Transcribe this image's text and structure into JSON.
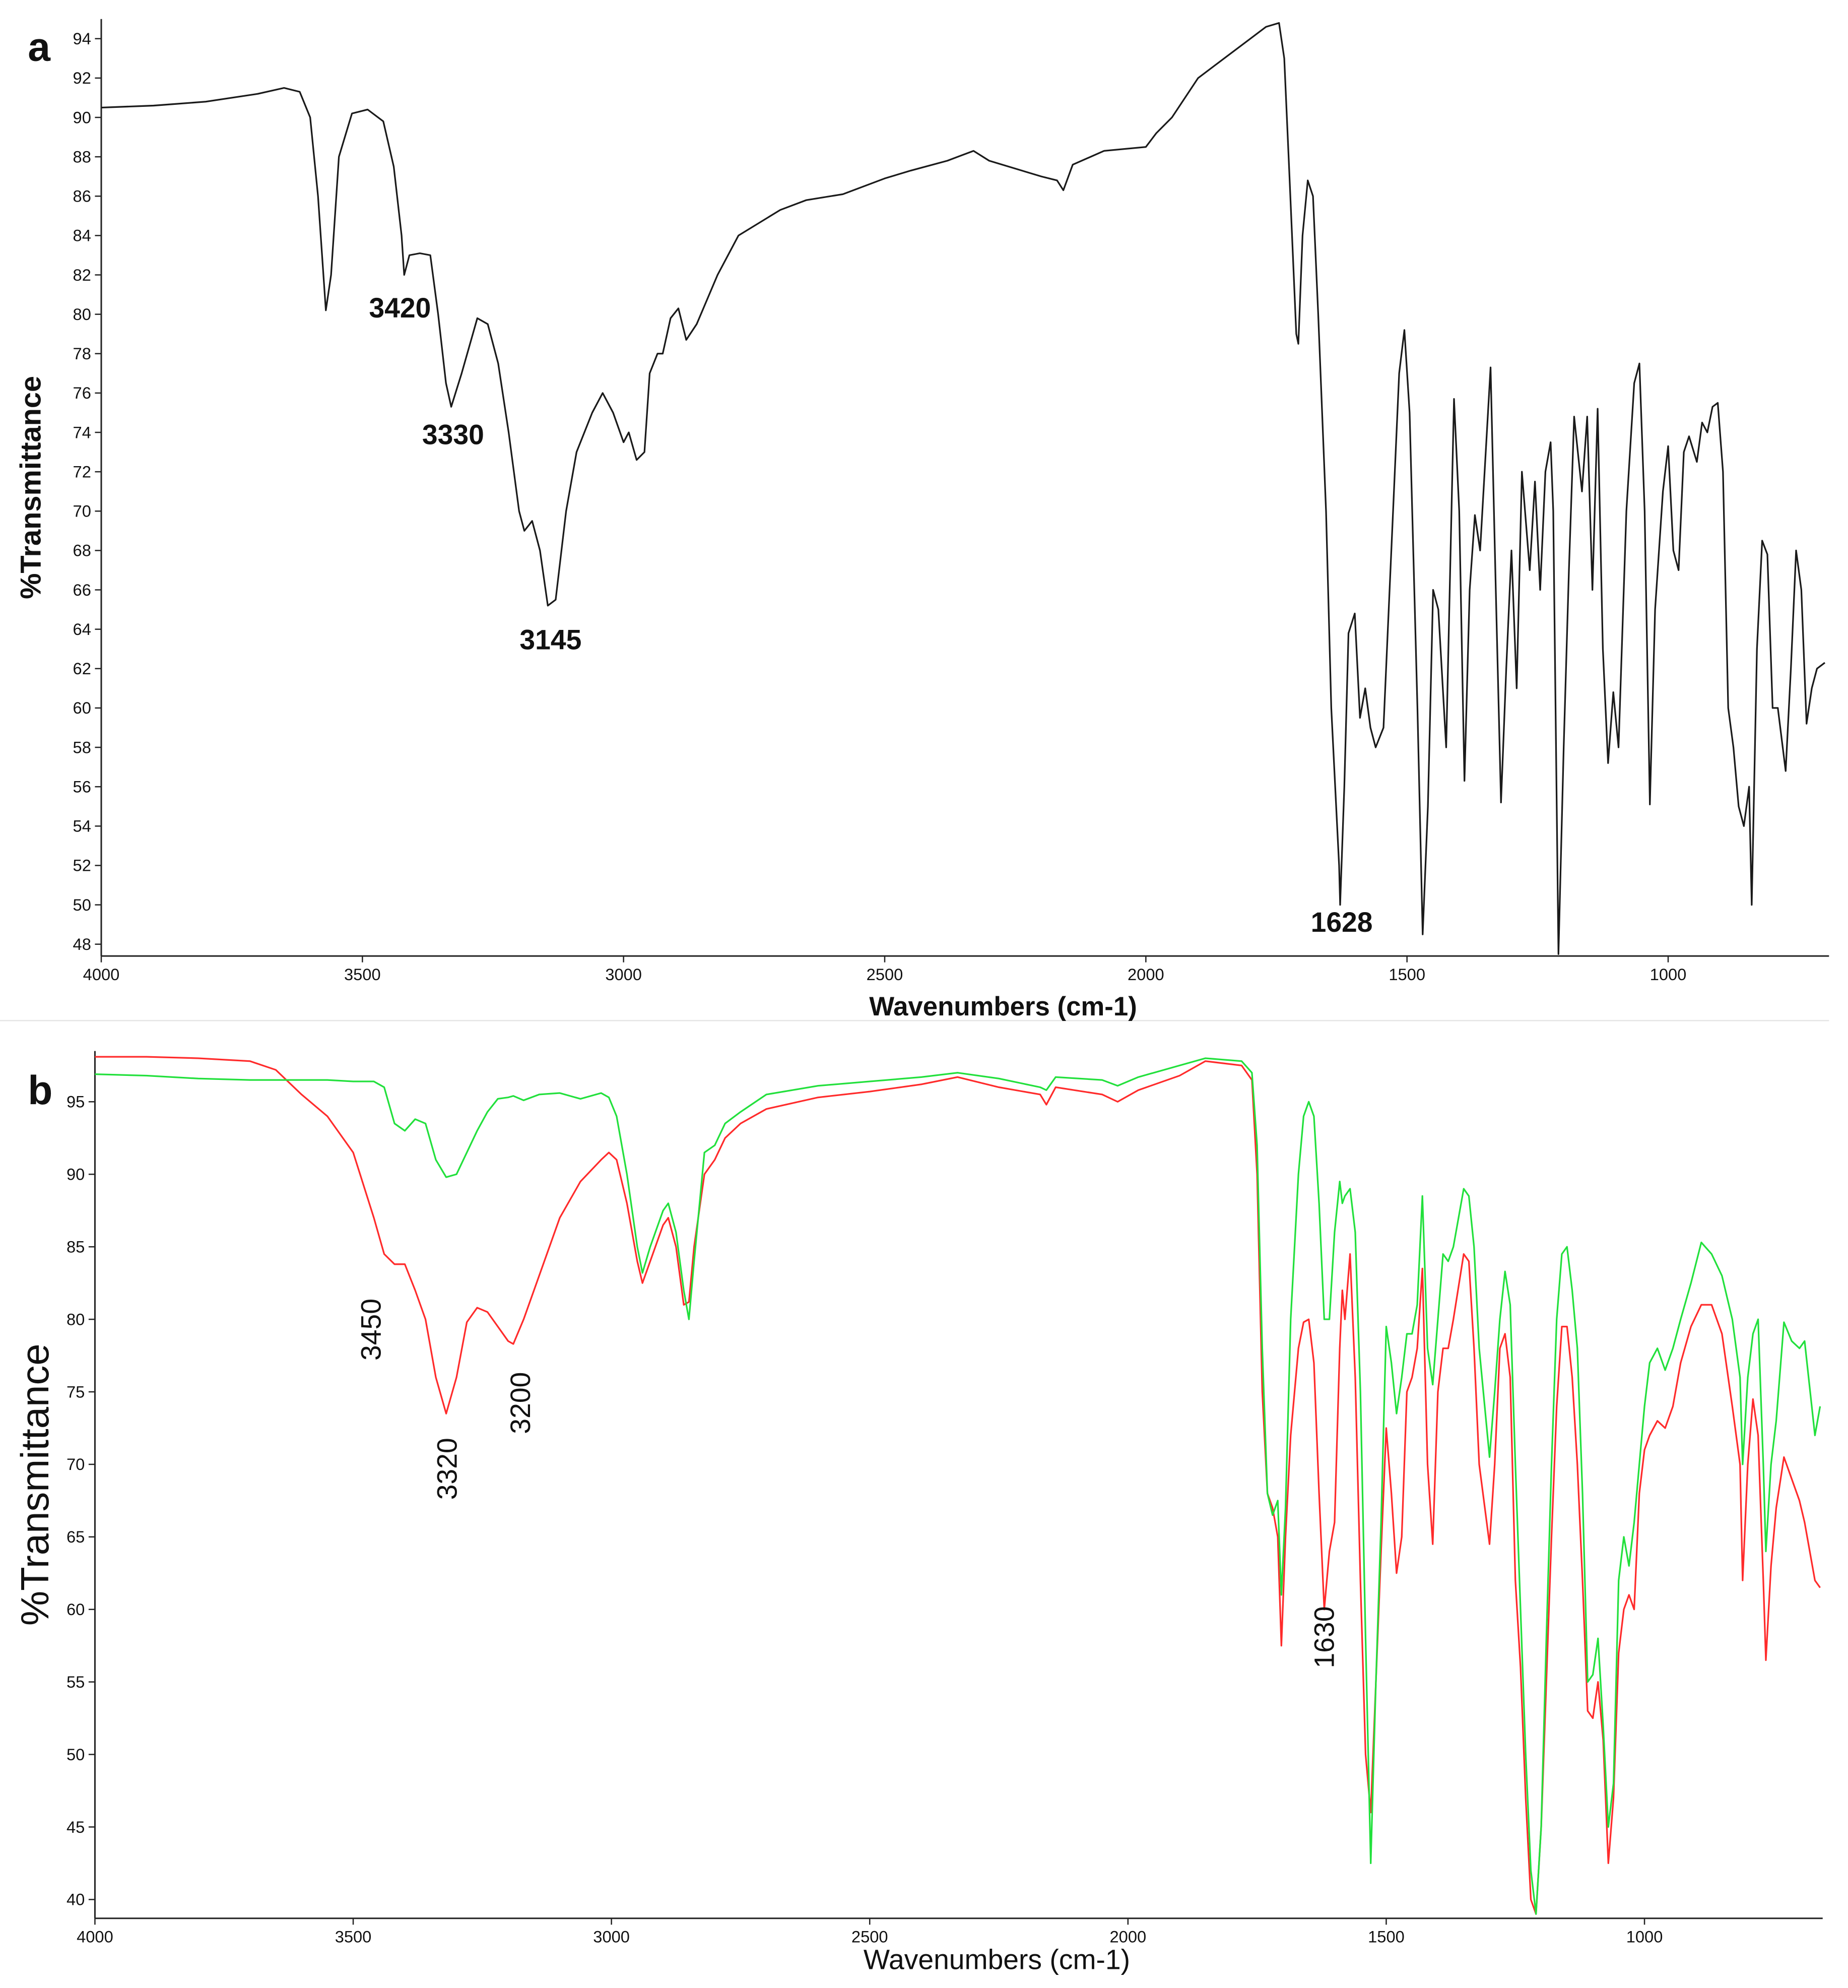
{
  "chart_data": [
    {
      "type": "line",
      "label": "a",
      "xlabel": "Wavenumbers (cm-1)",
      "ylabel": "%Transmittance",
      "xlim": [
        4000,
        692
      ],
      "ylim": [
        47.4,
        95
      ],
      "xticks": [
        4000,
        3500,
        3000,
        2500,
        2000,
        1500,
        1000
      ],
      "yticks": [
        48,
        50,
        52,
        54,
        56,
        58,
        60,
        62,
        64,
        66,
        68,
        70,
        72,
        74,
        76,
        78,
        80,
        82,
        84,
        86,
        88,
        90,
        92,
        94
      ],
      "grid": false,
      "annotations": [
        "3420",
        "3330",
        "3145",
        "1628"
      ],
      "x": [
        4000,
        3900,
        3800,
        3700,
        3650,
        3620,
        3600,
        3585,
        3570,
        3560,
        3545,
        3520,
        3490,
        3460,
        3440,
        3425,
        3420,
        3410,
        3390,
        3370,
        3355,
        3340,
        3330,
        3310,
        3280,
        3260,
        3240,
        3220,
        3200,
        3190,
        3175,
        3160,
        3145,
        3130,
        3110,
        3090,
        3060,
        3040,
        3020,
        3000,
        2990,
        2975,
        2960,
        2950,
        2935,
        2925,
        2910,
        2895,
        2880,
        2860,
        2820,
        2780,
        2700,
        2650,
        2580,
        2500,
        2450,
        2380,
        2330,
        2300,
        2250,
        2200,
        2170,
        2158,
        2140,
        2080,
        2000,
        1980,
        1950,
        1900,
        1850,
        1800,
        1770,
        1745,
        1735,
        1725,
        1712,
        1708,
        1700,
        1690,
        1680,
        1670,
        1655,
        1645,
        1630,
        1628,
        1620,
        1612,
        1600,
        1590,
        1580,
        1570,
        1560,
        1545,
        1530,
        1515,
        1505,
        1495,
        1480,
        1470,
        1460,
        1450,
        1440,
        1425,
        1410,
        1400,
        1390,
        1380,
        1370,
        1360,
        1340,
        1330,
        1320,
        1310,
        1300,
        1290,
        1280,
        1265,
        1255,
        1245,
        1235,
        1225,
        1220,
        1210,
        1200,
        1190,
        1180,
        1165,
        1155,
        1145,
        1135,
        1125,
        1115,
        1105,
        1095,
        1080,
        1065,
        1055,
        1045,
        1035,
        1025,
        1010,
        1000,
        990,
        980,
        970,
        960,
        945,
        935,
        925,
        915,
        905,
        895,
        885,
        875,
        865,
        855,
        845,
        840,
        830,
        820,
        810,
        800,
        790,
        775,
        765,
        755,
        745,
        735,
        725,
        715,
        700
      ],
      "series": [
        {
          "color": "#1a1a1a",
          "values": [
            90.5,
            90.6,
            90.8,
            91.2,
            91.5,
            91.3,
            90,
            86,
            80.2,
            82,
            88,
            90.2,
            90.4,
            89.8,
            87.5,
            84,
            82,
            83,
            83.1,
            83,
            80,
            76.5,
            75.3,
            77,
            79.8,
            79.5,
            77.5,
            74,
            70,
            69,
            69.5,
            68,
            65.2,
            65.5,
            70,
            73,
            75,
            76,
            75,
            73.5,
            74,
            72.6,
            73,
            77,
            78,
            78,
            79.8,
            80.3,
            78.7,
            79.5,
            82,
            84,
            85.3,
            85.8,
            86.1,
            86.9,
            87.3,
            87.8,
            88.3,
            87.8,
            87.4,
            87,
            86.8,
            86.3,
            87.6,
            88.3,
            88.5,
            89.2,
            90,
            92,
            93,
            94,
            94.6,
            94.8,
            93,
            87,
            79,
            78.5,
            84,
            86.8,
            86,
            80,
            70,
            60,
            52,
            50,
            56,
            63.8,
            64.8,
            59.5,
            61,
            59,
            58,
            59,
            68,
            77,
            79.2,
            75,
            60,
            48.5,
            55,
            66,
            65,
            58,
            75.7,
            70,
            56.3,
            66,
            69.8,
            68,
            77.3,
            66,
            55.2,
            62,
            68,
            61,
            72,
            67,
            71.5,
            66,
            72,
            73.5,
            70,
            47.5,
            58,
            67,
            74.8,
            71,
            74.8,
            66,
            75.2,
            63,
            57.2,
            60.8,
            58,
            70,
            76.5,
            77.5,
            70,
            55.1,
            65,
            71,
            73.3,
            68,
            67,
            73,
            73.8,
            72.5,
            74.5,
            74,
            75.3,
            75.5,
            72,
            60,
            58,
            55,
            54,
            56,
            50,
            63,
            68.5,
            67.8,
            60,
            60,
            56.8,
            62,
            68,
            66,
            59.2,
            61,
            62,
            62.3
          ]
        }
      ]
    },
    {
      "type": "line",
      "label": "b",
      "xlabel": "Wavenumbers (cm-1)",
      "ylabel": "%Transmittance",
      "xlim": [
        4000,
        655
      ],
      "ylim": [
        38.7,
        98.5
      ],
      "xticks": [
        4000,
        3500,
        3000,
        2500,
        2000,
        1500,
        1000
      ],
      "yticks": [
        40,
        45,
        50,
        55,
        60,
        65,
        70,
        75,
        80,
        85,
        90,
        95
      ],
      "grid": false,
      "annotations": [
        "3450",
        "3320",
        "3200",
        "1630"
      ],
      "x": [
        4000,
        3900,
        3800,
        3700,
        3650,
        3600,
        3550,
        3500,
        3460,
        3440,
        3420,
        3400,
        3380,
        3360,
        3340,
        3320,
        3300,
        3280,
        3260,
        3240,
        3220,
        3200,
        3190,
        3170,
        3140,
        3100,
        3060,
        3020,
        3005,
        2990,
        2970,
        2950,
        2940,
        2925,
        2900,
        2890,
        2875,
        2860,
        2850,
        2840,
        2820,
        2800,
        2780,
        2750,
        2700,
        2600,
        2500,
        2400,
        2330,
        2250,
        2170,
        2158,
        2140,
        2050,
        2020,
        1980,
        1900,
        1850,
        1780,
        1760,
        1750,
        1740,
        1730,
        1720,
        1710,
        1703,
        1695,
        1685,
        1670,
        1660,
        1650,
        1640,
        1630,
        1620,
        1610,
        1600,
        1590,
        1585,
        1580,
        1570,
        1560,
        1550,
        1540,
        1530,
        1520,
        1510,
        1500,
        1490,
        1480,
        1470,
        1460,
        1450,
        1440,
        1430,
        1420,
        1410,
        1400,
        1390,
        1380,
        1370,
        1350,
        1340,
        1330,
        1320,
        1300,
        1290,
        1280,
        1270,
        1260,
        1250,
        1240,
        1230,
        1220,
        1210,
        1200,
        1190,
        1180,
        1170,
        1160,
        1150,
        1140,
        1130,
        1120,
        1110,
        1100,
        1090,
        1080,
        1070,
        1060,
        1050,
        1040,
        1030,
        1020,
        1010,
        1000,
        990,
        975,
        960,
        945,
        930,
        910,
        890,
        870,
        850,
        830,
        815,
        810,
        800,
        790,
        780,
        770,
        765,
        755,
        745,
        730,
        715,
        700,
        690,
        670,
        660
      ],
      "series": [
        {
          "color": "#ff2b2b",
          "values": [
            98.1,
            98.1,
            98.0,
            97.8,
            97.2,
            95.5,
            94,
            91.5,
            87,
            84.5,
            83.8,
            83.8,
            82,
            80,
            76,
            73.5,
            76,
            79.8,
            80.8,
            80.5,
            79.5,
            78.5,
            78.3,
            80,
            83,
            87,
            89.5,
            91,
            91.5,
            91,
            88,
            84,
            82.5,
            84,
            86.5,
            87,
            85,
            81,
            81.2,
            85,
            90,
            91,
            92.5,
            93.5,
            94.5,
            95.3,
            95.7,
            96.2,
            96.7,
            96.0,
            95.5,
            94.8,
            96,
            95.5,
            95,
            95.8,
            96.8,
            97.8,
            97.5,
            96.5,
            90,
            75,
            68,
            67,
            65,
            57.5,
            65,
            72,
            78,
            79.8,
            80,
            77,
            68,
            60,
            64,
            66,
            78,
            82,
            80,
            84.5,
            76,
            62,
            50,
            46,
            55,
            64,
            72.5,
            68,
            62.5,
            65,
            75,
            76,
            78,
            83.5,
            70,
            64.5,
            75,
            78,
            78,
            80,
            84.5,
            84,
            78,
            70,
            64.5,
            70,
            78,
            79,
            76,
            62,
            56,
            47,
            40,
            39,
            45,
            55,
            65,
            74,
            79.5,
            79.5,
            76,
            70,
            62,
            53,
            52.5,
            55,
            51,
            42.5,
            47,
            57,
            60,
            61,
            60,
            68,
            71,
            72,
            73,
            72.5,
            74,
            77,
            79.5,
            81,
            81,
            79,
            74,
            70,
            62,
            70,
            74.5,
            72,
            62,
            56.5,
            63,
            67,
            70.5,
            69,
            67.5,
            66,
            62,
            61.5
          ]
        },
        {
          "color": "#22e03c",
          "values": [
            96.9,
            96.8,
            96.6,
            96.5,
            96.5,
            96.5,
            96.5,
            96.4,
            96.4,
            96,
            93.5,
            93,
            93.8,
            93.5,
            91,
            89.8,
            90,
            91.5,
            93,
            94.3,
            95.2,
            95.3,
            95.4,
            95.1,
            95.5,
            95.6,
            95.2,
            95.6,
            95.3,
            94,
            90,
            85,
            83.2,
            85,
            87.5,
            88,
            86,
            82,
            80,
            84,
            91.5,
            92,
            93.5,
            94.3,
            95.5,
            96.1,
            96.4,
            96.7,
            97.0,
            96.6,
            96,
            95.8,
            96.7,
            96.5,
            96.1,
            96.7,
            97.5,
            98,
            97.8,
            97,
            92,
            78,
            68,
            66.5,
            67.5,
            61,
            67,
            80,
            90,
            94,
            95,
            94,
            88,
            80,
            80,
            86,
            89.5,
            88,
            88.5,
            89,
            86,
            75,
            58,
            42.5,
            55,
            66,
            79.5,
            77,
            73.5,
            76,
            79,
            79,
            81,
            88.5,
            78,
            75.5,
            80,
            84.5,
            84,
            85,
            89,
            88.5,
            85,
            78,
            70.5,
            75,
            80,
            83.3,
            81,
            70,
            60,
            50,
            42,
            39,
            45,
            58,
            70,
            80,
            84.5,
            85,
            82,
            78,
            68,
            55,
            55.5,
            58,
            52,
            45,
            48,
            62,
            65,
            63,
            66,
            70,
            74,
            77,
            78,
            76.5,
            78,
            80,
            82.5,
            85.3,
            84.5,
            83,
            80,
            76,
            70,
            76,
            79,
            80,
            70,
            64,
            70,
            73,
            79.8,
            78.5,
            78,
            78.5,
            72,
            74
          ]
        }
      ]
    }
  ]
}
